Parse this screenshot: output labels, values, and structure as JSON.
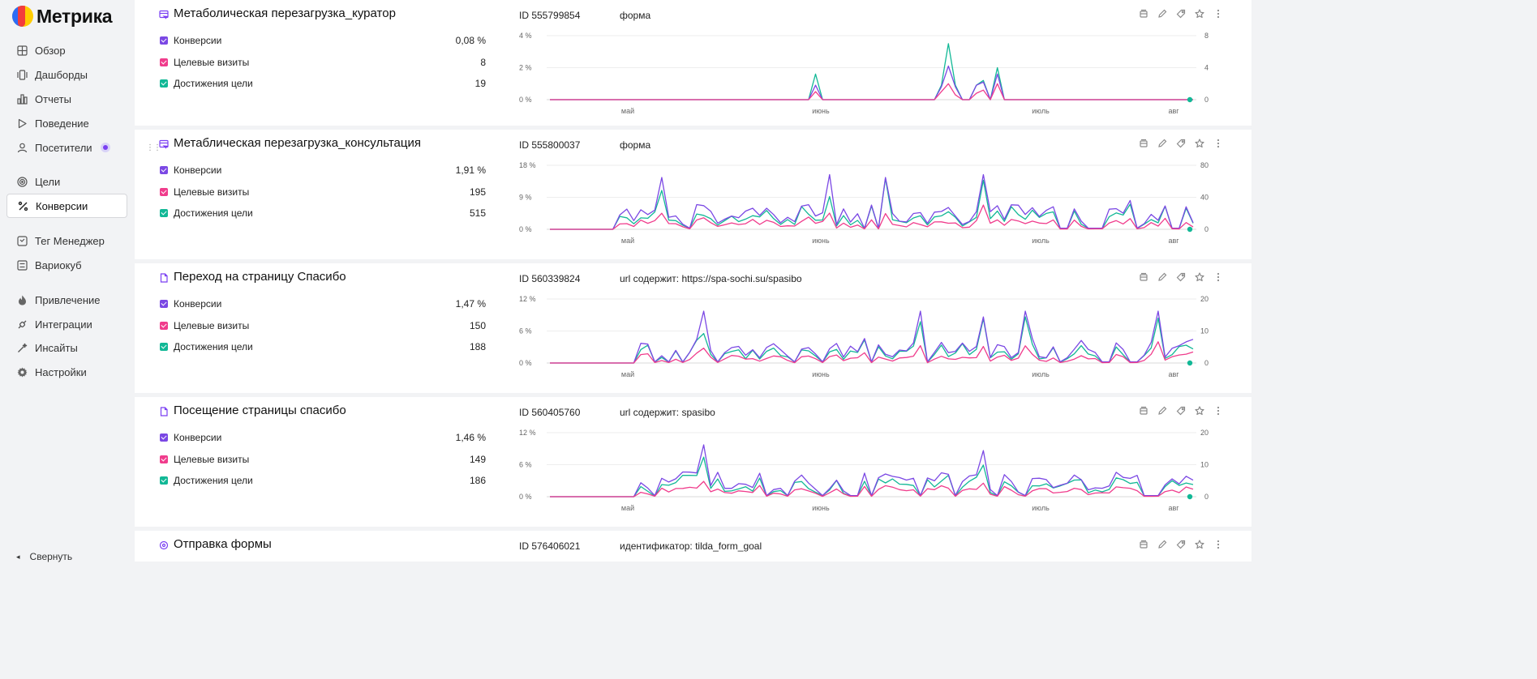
{
  "app": {
    "logo_text": "Метрика"
  },
  "sidebar": {
    "items": [
      {
        "label": "Обзор",
        "icon": "grid-icon"
      },
      {
        "label": "Дашборды",
        "icon": "dashboard-icon"
      },
      {
        "label": "Отчеты",
        "icon": "bar-chart-icon"
      },
      {
        "label": "Поведение",
        "icon": "play-icon"
      },
      {
        "label": "Посетители",
        "icon": "user-icon"
      },
      {
        "label": "Цели",
        "icon": "target-icon"
      },
      {
        "label": "Конверсии",
        "icon": "percent-icon"
      },
      {
        "label": "Тег Менеджер",
        "icon": "tag-manager-icon"
      },
      {
        "label": "Вариокуб",
        "icon": "variocube-icon"
      },
      {
        "label": "Привлечение",
        "icon": "flame-icon"
      },
      {
        "label": "Интеграции",
        "icon": "integrations-icon"
      },
      {
        "label": "Инсайты",
        "icon": "wand-icon"
      },
      {
        "label": "Настройки",
        "icon": "gear-icon"
      }
    ],
    "active": "Конверсии",
    "collapse_label": "Свернуть"
  },
  "colors": {
    "conversion": "#7b48e4",
    "visits": "#f03c8c",
    "achievements": "#12b896"
  },
  "goals": [
    {
      "title": "Метаболическая перезагрузка_куратор",
      "id": "ID 555799854",
      "condition": "форма",
      "metrics": [
        {
          "label": "Конверсии",
          "value": "0,08 %"
        },
        {
          "label": "Целевые визиты",
          "value": "8"
        },
        {
          "label": "Достижения цели",
          "value": "19"
        }
      ],
      "chart": {
        "left_ticks": [
          "4 %",
          "2 %",
          "0 %"
        ],
        "right_ticks": [
          "8",
          "4",
          "0"
        ],
        "x_ticks": [
          "май",
          "июнь",
          "июль",
          "авг"
        ]
      }
    },
    {
      "title": "Метаблическая перезагрузка_консультация",
      "id": "ID 555800037",
      "condition": "форма",
      "metrics": [
        {
          "label": "Конверсии",
          "value": "1,91 %"
        },
        {
          "label": "Целевые визиты",
          "value": "195"
        },
        {
          "label": "Достижения цели",
          "value": "515"
        }
      ],
      "chart": {
        "left_ticks": [
          "18 %",
          "9 %",
          "0 %"
        ],
        "right_ticks": [
          "80",
          "40",
          "0"
        ],
        "x_ticks": [
          "май",
          "июнь",
          "июль",
          "авг"
        ]
      }
    },
    {
      "title": "Переход на страницу Спасибо",
      "id": "ID 560339824",
      "condition": "url содержит: https://spa-sochi.su/spasibo",
      "metrics": [
        {
          "label": "Конверсии",
          "value": "1,47 %"
        },
        {
          "label": "Целевые визиты",
          "value": "150"
        },
        {
          "label": "Достижения цели",
          "value": "188"
        }
      ],
      "chart": {
        "left_ticks": [
          "12 %",
          "6 %",
          "0 %"
        ],
        "right_ticks": [
          "20",
          "10",
          "0"
        ],
        "x_ticks": [
          "май",
          "июнь",
          "июль",
          "авг"
        ]
      }
    },
    {
      "title": "Посещение страницы спасибо",
      "id": "ID 560405760",
      "condition": "url содержит: spasibo",
      "metrics": [
        {
          "label": "Конверсии",
          "value": "1,46 %"
        },
        {
          "label": "Целевые визиты",
          "value": "149"
        },
        {
          "label": "Достижения цели",
          "value": "186"
        }
      ],
      "chart": {
        "left_ticks": [
          "12 %",
          "6 %",
          "0 %"
        ],
        "right_ticks": [
          "20",
          "10",
          "0"
        ],
        "x_ticks": [
          "май",
          "июнь",
          "июль",
          "авг"
        ]
      }
    },
    {
      "title": "Отправка формы",
      "id": "ID 576406021",
      "condition": "идентификатор: tilda_form_goal"
    }
  ]
}
